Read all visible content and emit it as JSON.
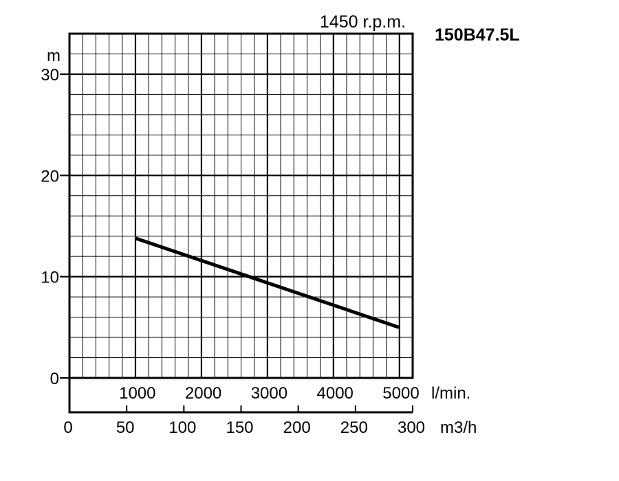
{
  "chart_data": {
    "type": "line",
    "rpm_label": "1450 r.p.m.",
    "model": "150B47.5L",
    "ylabel": "m",
    "ylim": [
      0,
      34
    ],
    "y_ticks": [
      "0",
      "10",
      "20",
      "30"
    ],
    "x_lmin": {
      "unit": "l/min.",
      "ticks": [
        "1000",
        "2000",
        "3000",
        "4000",
        "5000"
      ]
    },
    "x_m3h": {
      "unit": "m3/h",
      "range": [
        0,
        300
      ],
      "ticks": [
        "0",
        "50",
        "100",
        "150",
        "200",
        "250",
        "300"
      ]
    },
    "grid": true,
    "series": [
      {
        "x_lmin": [
          1000,
          5000
        ],
        "y": [
          13.8,
          5.0
        ]
      }
    ],
    "colors": {
      "line": "#000000",
      "grid": "#000000"
    }
  }
}
